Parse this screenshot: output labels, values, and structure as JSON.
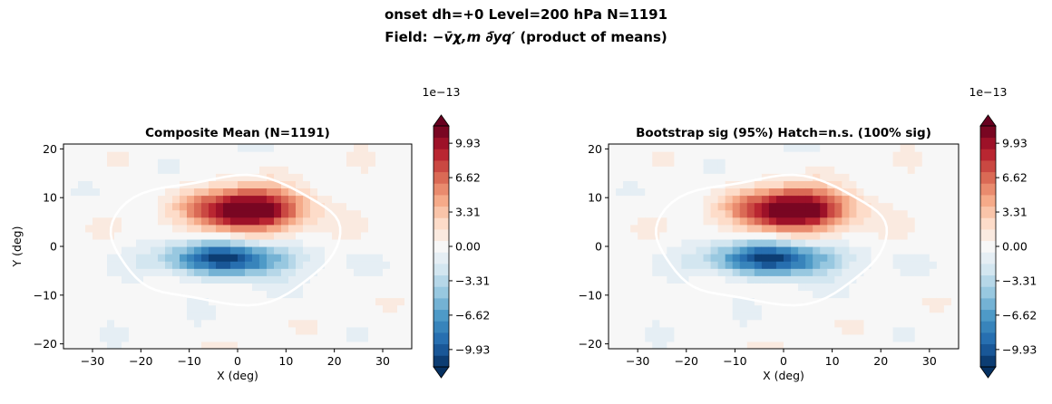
{
  "figure": {
    "suptitle_line1": "onset  dh=+0   Level=200 hPa   N=1191",
    "suptitle_line2_prefix": "Field: ",
    "suptitle_line2_field": "−v̄χ,m ∂̄yq′",
    "suptitle_line2_suffix": "  (product of means)"
  },
  "chart_data": [
    {
      "type": "heatmap",
      "title": "Composite Mean  (N=1191)",
      "xlabel": "X (deg)",
      "ylabel": "Y (deg)",
      "xlim": [
        -36,
        36
      ],
      "ylim": [
        -21,
        21
      ],
      "xticks": [
        -30,
        -20,
        -10,
        0,
        10,
        20,
        30
      ],
      "yticks": [
        -20,
        -10,
        0,
        10,
        20
      ],
      "colorbar": {
        "exponent_label": "1e−13",
        "ticks": [
          9.93,
          6.62,
          3.31,
          0.0,
          -3.31,
          -6.62,
          -9.93
        ],
        "tick_labels": [
          "9.93",
          "6.62",
          "3.31",
          "0.00",
          "−3.31",
          "−6.62",
          "−9.93"
        ],
        "range": [
          -11.6,
          11.6
        ],
        "colormap": "RdBu_r",
        "extend": "both"
      },
      "positive_lobe": {
        "center": [
          2,
          7.5
        ],
        "peak": 14
      },
      "negative_lobe": {
        "center": [
          -2,
          -2.5
        ],
        "peak": -11
      },
      "contour_color": "#ffffff"
    },
    {
      "type": "heatmap",
      "title": "Bootstrap sig (95%)  Hatch=n.s.  (100% sig)",
      "xlabel": "X (deg)",
      "ylabel": "",
      "xlim": [
        -36,
        36
      ],
      "ylim": [
        -21,
        21
      ],
      "xticks": [
        -30,
        -20,
        -10,
        0,
        10,
        20,
        30
      ],
      "yticks": [
        -20,
        -10,
        0,
        10,
        20
      ],
      "colorbar": {
        "exponent_label": "1e−13",
        "ticks": [
          9.93,
          6.62,
          3.31,
          0.0,
          -3.31,
          -6.62,
          -9.93
        ],
        "tick_labels": [
          "9.93",
          "6.62",
          "3.31",
          "0.00",
          "−3.31",
          "−6.62",
          "−9.93"
        ],
        "range": [
          -11.6,
          11.6
        ],
        "colormap": "RdBu_r",
        "extend": "both"
      },
      "positive_lobe": {
        "center": [
          2,
          7.5
        ],
        "peak": 14
      },
      "negative_lobe": {
        "center": [
          -2,
          -2.5
        ],
        "peak": -11
      },
      "contour_color": "#ffffff"
    }
  ]
}
